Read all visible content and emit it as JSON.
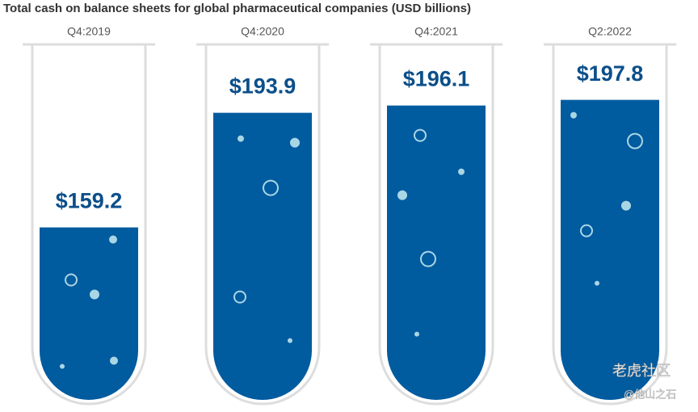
{
  "chart_data": {
    "type": "bar",
    "title": "Total cash on balance sheets for global pharmaceutical companies (USD billions)",
    "categories": [
      "Q4:2019",
      "Q4:2020",
      "Q4:2021",
      "Q2:2022"
    ],
    "values": [
      159.2,
      193.9,
      196.1,
      197.8
    ],
    "value_labels": [
      "$159.2",
      "$193.9",
      "$196.1",
      "$197.8"
    ],
    "color": "#005b9f",
    "ylim": [
      107,
      207
    ],
    "watermark": [
      "老虎社区",
      "@他山之石"
    ]
  }
}
